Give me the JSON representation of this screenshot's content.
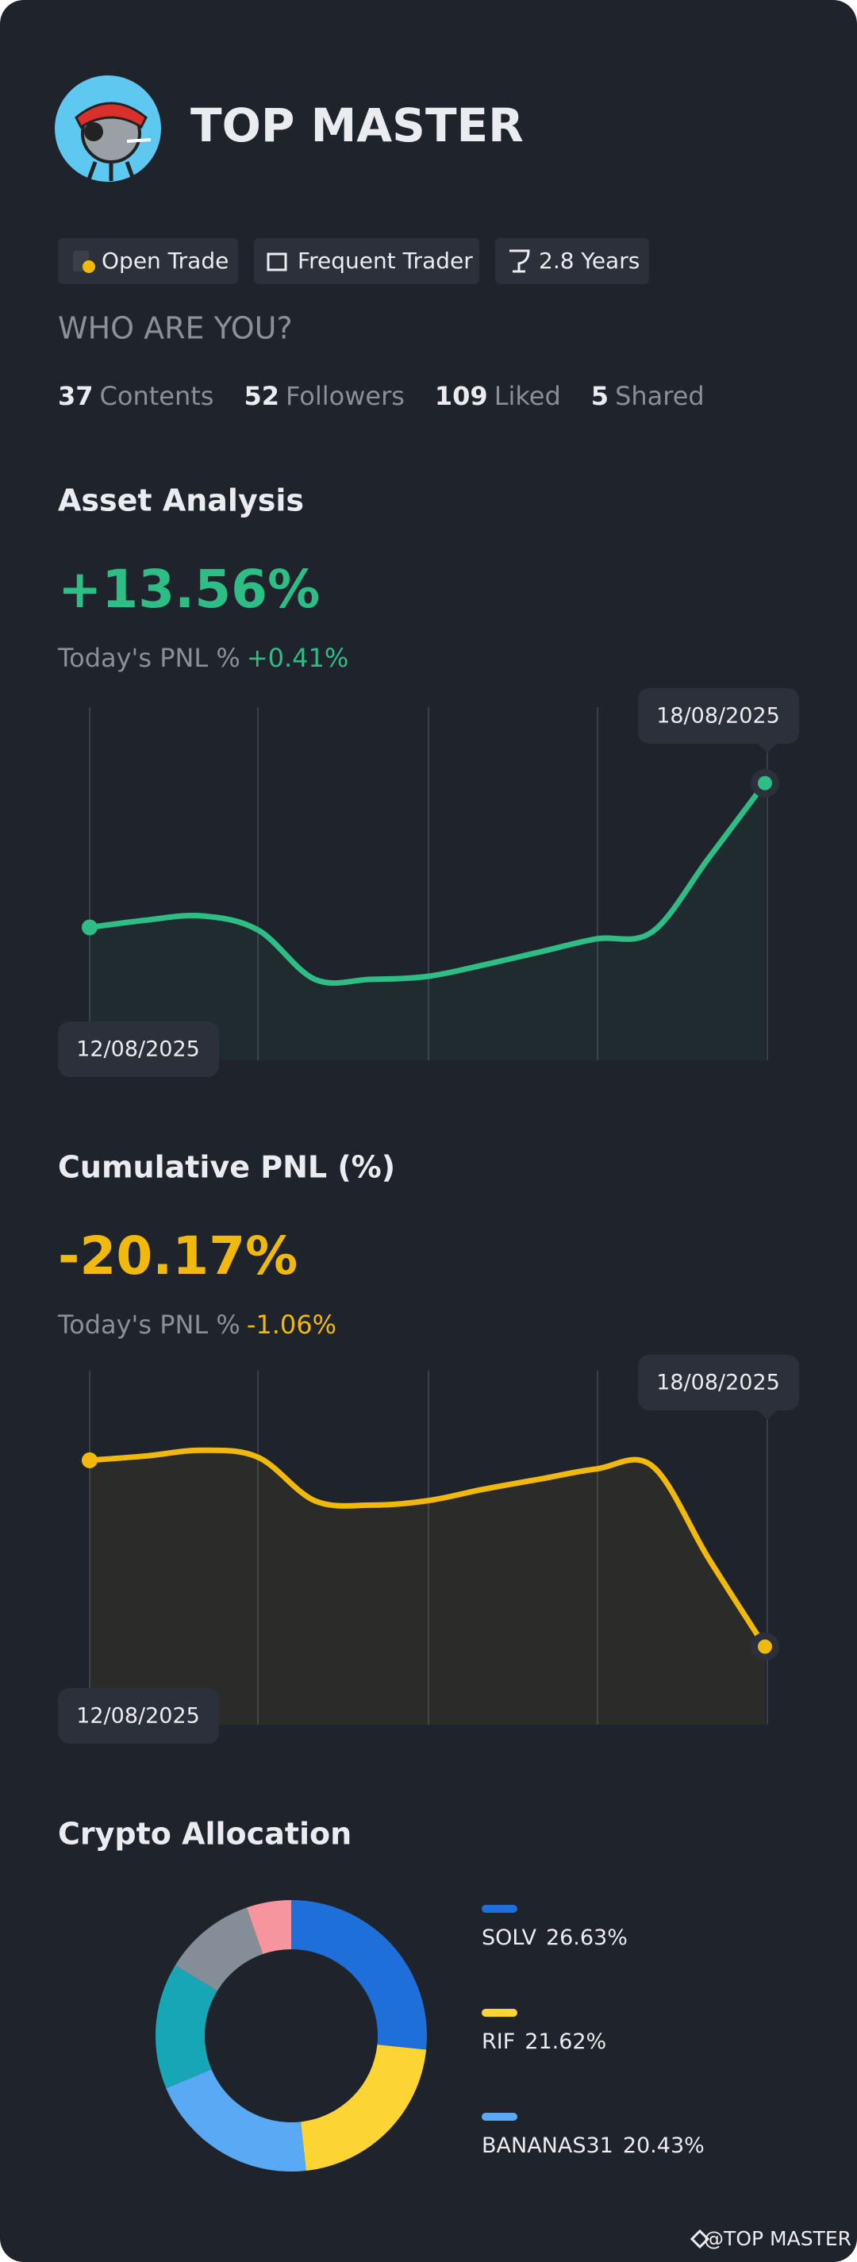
{
  "profile": {
    "name": "TOP MASTER",
    "tags": [
      "Open Trade",
      "Frequent Trader",
      "2.8 Years"
    ],
    "question": "WHO ARE YOU?",
    "stats": [
      {
        "count": "37",
        "label": "Contents"
      },
      {
        "count": "52",
        "label": "Followers"
      },
      {
        "count": "109",
        "label": "Liked"
      },
      {
        "count": "5",
        "label": "Shared"
      }
    ]
  },
  "chart_data": [
    {
      "type": "line",
      "title": "Asset Analysis",
      "headline": "+13.56%",
      "pnl_label": "Today's PNL %",
      "pnl_value": "+0.41%",
      "color": "#2ebd85",
      "categories": [
        "12/08/2025",
        null,
        null,
        null,
        null,
        null,
        null,
        null,
        null,
        null,
        null,
        null,
        "18/08/2025"
      ],
      "values": [
        0,
        0.68,
        1.08,
        -0.27,
        -4.88,
        -4.88,
        -4.61,
        -3.53,
        -2.31,
        -1.08,
        -0.41,
        6.51,
        13.56
      ],
      "ylim": [
        -12.5,
        20.7
      ]
    },
    {
      "type": "line",
      "title": "Cumulative PNL (%)",
      "headline": "-20.17%",
      "pnl_label": "Today's PNL %",
      "pnl_value": "-1.06%",
      "color": "#f0b90b",
      "categories": [
        "12/08/2025",
        null,
        null,
        null,
        null,
        null,
        null,
        null,
        null,
        null,
        null,
        null,
        "18/08/2025"
      ],
      "values": [
        0,
        0.47,
        1.09,
        0.31,
        -4.38,
        -4.85,
        -4.38,
        -3.13,
        -2.03,
        -0.94,
        -0.63,
        -10.64,
        -20.17
      ],
      "ylim": [
        -28.62,
        9.7
      ]
    },
    {
      "type": "donut",
      "title": "Crypto Allocation",
      "categories": [
        "SOLV",
        "RIF",
        "BANANAS31",
        null,
        null,
        null
      ],
      "values": [
        26.63,
        21.62,
        20.43,
        15,
        11,
        5.32
      ],
      "value_labels": [
        "26.63%",
        "21.62%",
        "20.43%",
        null,
        null,
        null
      ],
      "colors": [
        "#1e6fd9",
        "#fcd535",
        "#5aa9f5",
        "#17a6b5",
        "#858d99",
        "#f6959d"
      ]
    }
  ],
  "watermark": "@TOP MASTER"
}
